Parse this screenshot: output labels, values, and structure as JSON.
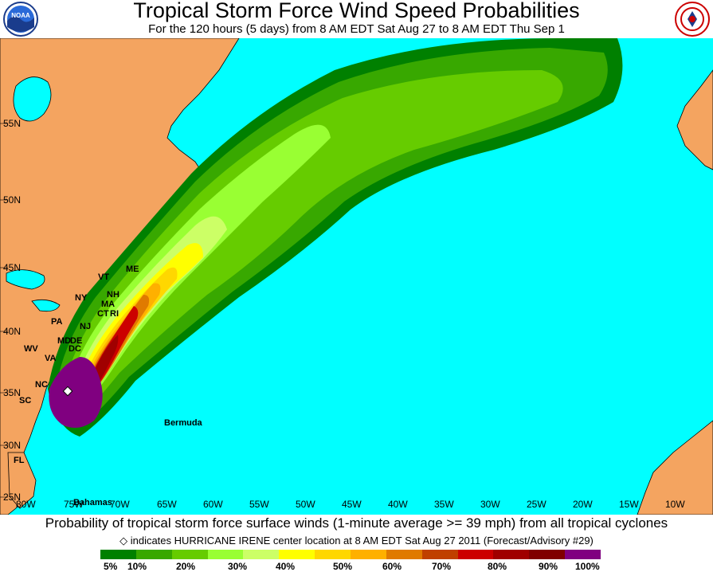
{
  "title": "Tropical Storm Force Wind Speed Probabilities",
  "subtitle": "For the 120 hours (5 days) from 8 AM EDT Sat Aug 27 to 8 AM EDT Thu Sep 1",
  "logos": {
    "left": "noaa-logo-icon",
    "right": "nws-logo-icon",
    "left_text": "NOAA"
  },
  "map": {
    "ocean_color": "#00ffff",
    "land_color": "#f4a460",
    "lat_labels": [
      "55N",
      "50N",
      "45N",
      "40N",
      "35N",
      "30N",
      "25N"
    ],
    "lon_labels": [
      "80W",
      "75W",
      "70W",
      "65W",
      "60W",
      "55W",
      "50W",
      "45W",
      "40W",
      "35W",
      "30W",
      "25W",
      "20W",
      "15W",
      "10W"
    ],
    "place_labels": [
      "ME",
      "VT",
      "NH",
      "MA",
      "CT",
      "RI",
      "NY",
      "PA",
      "NJ",
      "MD",
      "DE",
      "DC",
      "WV",
      "VA",
      "NC",
      "SC",
      "FL",
      "Bermuda",
      "Bahamas"
    ]
  },
  "caption": "Probability of tropical storm force surface winds (1-minute average >= 39 mph) from all tropical cyclones",
  "center_note": "indicates HURRICANE IRENE center location at 8 AM EDT Sat Aug 27 2011 (Forecast/Advisory #29)",
  "legend": {
    "colors": [
      "#008000",
      "#38a800",
      "#66cc00",
      "#99ff33",
      "#ccff66",
      "#ffff00",
      "#ffd700",
      "#ffb000",
      "#e07a00",
      "#c04000",
      "#cc0000",
      "#a00000",
      "#800000",
      "#800080"
    ],
    "ticks": [
      "5%",
      "10%",
      "20%",
      "30%",
      "40%",
      "50%",
      "60%",
      "70%",
      "80%",
      "90%",
      "100%"
    ]
  }
}
